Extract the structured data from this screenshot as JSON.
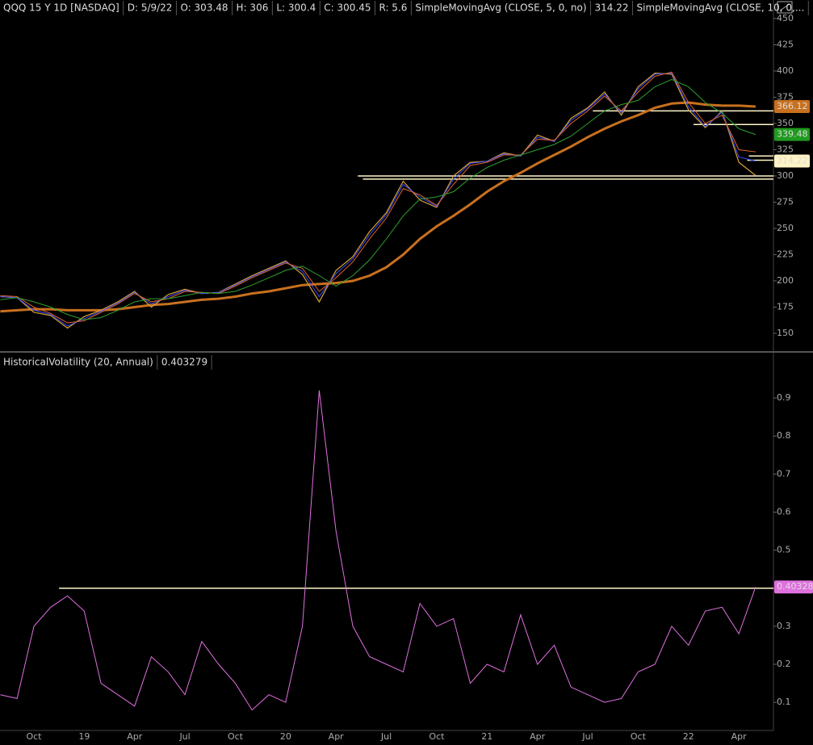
{
  "chart_data": [
    {
      "type": "line",
      "title": "QQQ 15 Y 1D [NASDAQ]",
      "quote": [
        "D: 5/9/22",
        "O: 303.48",
        "H: 306",
        "L: 300.4",
        "C: 300.45",
        "R: 5.6"
      ],
      "ylim": [
        134.6,
        461.5
      ],
      "yticks": [
        150,
        175,
        200,
        225,
        250,
        275,
        300,
        325,
        350,
        375,
        400,
        425,
        450
      ],
      "series": [
        {
          "color": "#d9a23a",
          "width": 1.2,
          "values": [
            185,
            184,
            170,
            167,
            155,
            166,
            172,
            180,
            190,
            175,
            187,
            192,
            188,
            189,
            197,
            205,
            212,
            219,
            206,
            180,
            210,
            223,
            247,
            265,
            295,
            277,
            270,
            300,
            313,
            314,
            322,
            319,
            339,
            333,
            355,
            365,
            380,
            358,
            385,
            398,
            397,
            363,
            346,
            362,
            313,
            300.45
          ]
        },
        {
          "name": "SimpleMovingAvg (CLOSE, 5, 0, no)",
          "color": "#3b4cff",
          "width": 1,
          "tag_color": "#fff4c4",
          "last_value": 314.22,
          "values": [
            185,
            184,
            172,
            168,
            157,
            164,
            171,
            179,
            189,
            178,
            185,
            191,
            188,
            189,
            196,
            204,
            211,
            218,
            209,
            185,
            207,
            221,
            244,
            263,
            292,
            280,
            271,
            297,
            312,
            314,
            321,
            319,
            337,
            333,
            353,
            364,
            378,
            360,
            383,
            397,
            398,
            366,
            347,
            361,
            318,
            314.22
          ]
        },
        {
          "name": "SimpleMovingAvg (CLOSE, 10, 0,...",
          "color": "#e2662a",
          "width": 1,
          "values": [
            186,
            185,
            175,
            169,
            160,
            162,
            170,
            178,
            188,
            180,
            183,
            190,
            189,
            188,
            195,
            203,
            210,
            217,
            212,
            190,
            203,
            218,
            240,
            260,
            288,
            282,
            272,
            292,
            310,
            313,
            320,
            320,
            335,
            334,
            350,
            362,
            376,
            362,
            380,
            395,
            399,
            370,
            350,
            358,
            325,
            323
          ]
        },
        {
          "color": "#2fa12f",
          "width": 1,
          "tag_color": "#1f9a1f",
          "last_value": 339.48,
          "values": [
            182,
            184,
            180,
            175,
            168,
            163,
            165,
            172,
            180,
            183,
            183,
            186,
            189,
            188,
            190,
            196,
            203,
            210,
            214,
            205,
            195,
            205,
            220,
            240,
            262,
            278,
            280,
            285,
            298,
            308,
            315,
            320,
            325,
            330,
            338,
            350,
            362,
            368,
            372,
            385,
            392,
            385,
            370,
            360,
            345,
            339.48
          ]
        },
        {
          "color": "#c8701e",
          "width": 3,
          "tag_color": "#c8701e",
          "last_value": 366.12,
          "values": [
            171,
            172,
            173,
            173,
            172,
            172,
            172,
            173,
            175,
            177,
            178,
            180,
            182,
            183,
            185,
            188,
            190,
            193,
            196,
            197,
            198,
            200,
            205,
            213,
            225,
            240,
            252,
            262,
            273,
            285,
            295,
            303,
            312,
            320,
            328,
            337,
            345,
            352,
            358,
            365,
            369,
            370,
            368,
            367,
            367,
            366.12
          ]
        }
      ],
      "hlines": [
        {
          "value": 300,
          "from": 21.3
        },
        {
          "value": 297,
          "from": 21.6
        },
        {
          "value": 362,
          "from": 35.3
        },
        {
          "value": 349,
          "from": 41.3
        },
        {
          "value": 319,
          "from": 44.6
        },
        {
          "value": 315,
          "from": 44.5
        }
      ],
      "hline_color": "#fff6c8"
    },
    {
      "type": "line",
      "categories": [
        null,
        null,
        "Oct",
        null,
        null,
        "19",
        null,
        null,
        "Apr",
        null,
        null,
        "Jul",
        null,
        null,
        "Oct",
        null,
        null,
        "20",
        null,
        null,
        "Apr",
        null,
        null,
        "Jul",
        null,
        null,
        "Oct",
        null,
        null,
        "21",
        null,
        null,
        "Apr",
        null,
        null,
        "Jul",
        null,
        null,
        "Oct",
        null,
        null,
        "22",
        null,
        null,
        "Apr",
        null
      ],
      "ylim": [
        0.026,
        0.966
      ],
      "yticks": [
        0.1,
        0.2,
        0.3,
        0.4,
        0.5,
        0.6,
        0.7,
        0.8,
        0.9
      ],
      "series": [
        {
          "name": "HistoricalVolatility (20, Annual)",
          "color": "#e070e0",
          "width": 1,
          "tag_color": "#e070e0",
          "last_value": 0.40328,
          "values": [
            0.12,
            0.11,
            0.3,
            0.35,
            0.38,
            0.34,
            0.15,
            0.12,
            0.09,
            0.22,
            0.18,
            0.12,
            0.26,
            0.2,
            0.15,
            0.08,
            0.12,
            0.1,
            0.3,
            0.92,
            0.55,
            0.3,
            0.22,
            0.2,
            0.18,
            0.36,
            0.3,
            0.32,
            0.15,
            0.2,
            0.18,
            0.33,
            0.2,
            0.25,
            0.14,
            0.12,
            0.1,
            0.11,
            0.18,
            0.2,
            0.3,
            0.25,
            0.34,
            0.35,
            0.28,
            0.403279
          ]
        }
      ],
      "hlines": [
        {
          "value": 0.4,
          "from": 3.5
        }
      ],
      "hline_color": "#fff6c8"
    }
  ]
}
